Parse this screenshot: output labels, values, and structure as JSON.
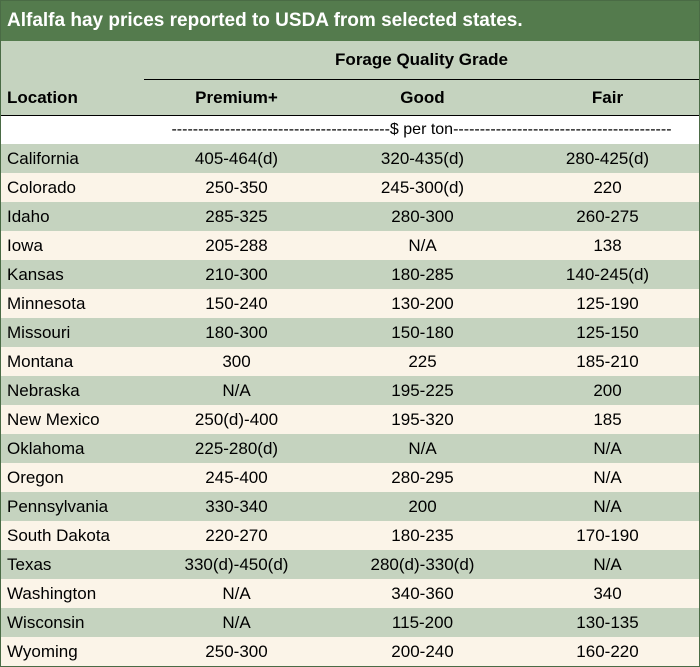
{
  "title": "Alfalfa hay prices reported to USDA from selected states.",
  "header": {
    "group_label": "Forage Quality Grade",
    "location_label": "Location",
    "columns": [
      "Premium+",
      "Good",
      "Fair"
    ]
  },
  "units": "-----------------------------------------$ per ton-----------------------------------------",
  "rows": [
    {
      "location": "California",
      "premium": "405-464(d)",
      "good": "320-435(d)",
      "fair": "280-425(d)"
    },
    {
      "location": "Colorado",
      "premium": "250-350",
      "good": "245-300(d)",
      "fair": "220"
    },
    {
      "location": "Idaho",
      "premium": "285-325",
      "good": "280-300",
      "fair": "260-275"
    },
    {
      "location": "Iowa",
      "premium": "205-288",
      "good": "N/A",
      "fair": "138"
    },
    {
      "location": "Kansas",
      "premium": "210-300",
      "good": "180-285",
      "fair": "140-245(d)"
    },
    {
      "location": "Minnesota",
      "premium": "150-240",
      "good": "130-200",
      "fair": "125-190"
    },
    {
      "location": "Missouri",
      "premium": "180-300",
      "good": "150-180",
      "fair": "125-150"
    },
    {
      "location": "Montana",
      "premium": "300",
      "good": "225",
      "fair": "185-210"
    },
    {
      "location": "Nebraska",
      "premium": "N/A",
      "good": "195-225",
      "fair": "200"
    },
    {
      "location": "New Mexico",
      "premium": "250(d)-400",
      "good": "195-320",
      "fair": "185"
    },
    {
      "location": "Oklahoma",
      "premium": "225-280(d)",
      "good": "N/A",
      "fair": "N/A"
    },
    {
      "location": "Oregon",
      "premium": "245-400",
      "good": "280-295",
      "fair": "N/A"
    },
    {
      "location": "Pennsylvania",
      "premium": "330-340",
      "good": "200",
      "fair": "N/A"
    },
    {
      "location": "South Dakota",
      "premium": "220-270",
      "good": "180-235",
      "fair": "170-190"
    },
    {
      "location": "Texas",
      "premium": "330(d)-450(d)",
      "good": "280(d)-330(d)",
      "fair": "N/A"
    },
    {
      "location": "Washington",
      "premium": "N/A",
      "good": "340-360",
      "fair": "340"
    },
    {
      "location": "Wisconsin",
      "premium": "N/A",
      "good": "115-200",
      "fair": "130-135"
    },
    {
      "location": "Wyoming",
      "premium": "250-300",
      "good": "200-240",
      "fair": "160-220"
    }
  ]
}
